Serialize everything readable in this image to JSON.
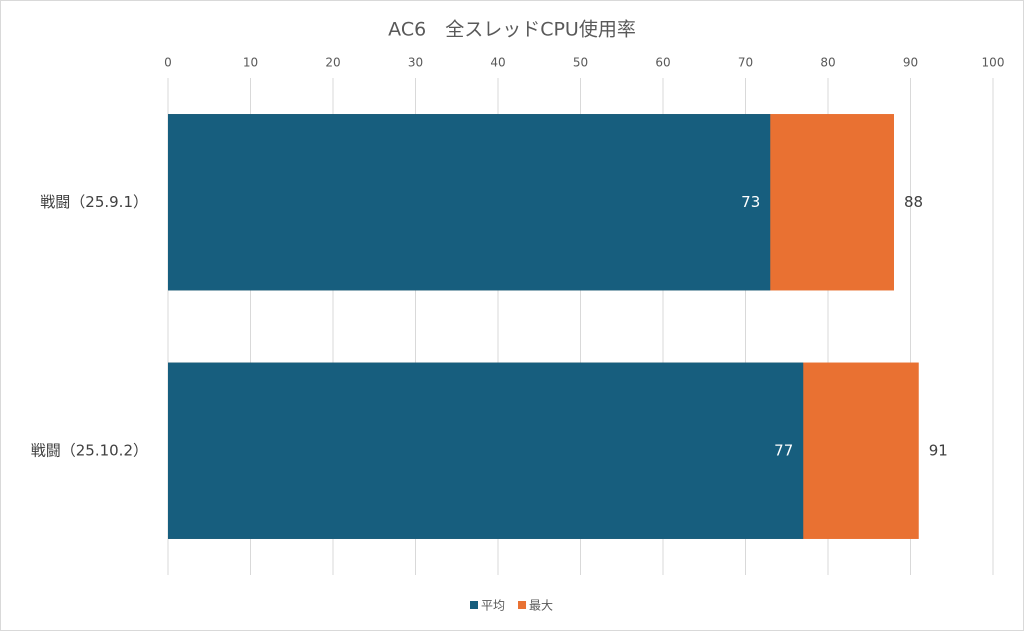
{
  "chart_data": {
    "type": "bar",
    "orientation": "horizontal",
    "overlap": true,
    "title": "AC6　全スレッドCPU使用率",
    "categories": [
      "戦闘（25.9.1）",
      "戦闘（25.10.2）"
    ],
    "series": [
      {
        "name": "平均",
        "color": "#175e7e",
        "values": [
          73,
          77
        ]
      },
      {
        "name": "最大",
        "color": "#e97132",
        "values": [
          88,
          91
        ]
      }
    ],
    "xlim": [
      0,
      100
    ],
    "xticks": [
      0,
      10,
      20,
      30,
      40,
      50,
      60,
      70,
      80,
      90,
      100
    ],
    "grid": true,
    "legend": "bottom"
  }
}
